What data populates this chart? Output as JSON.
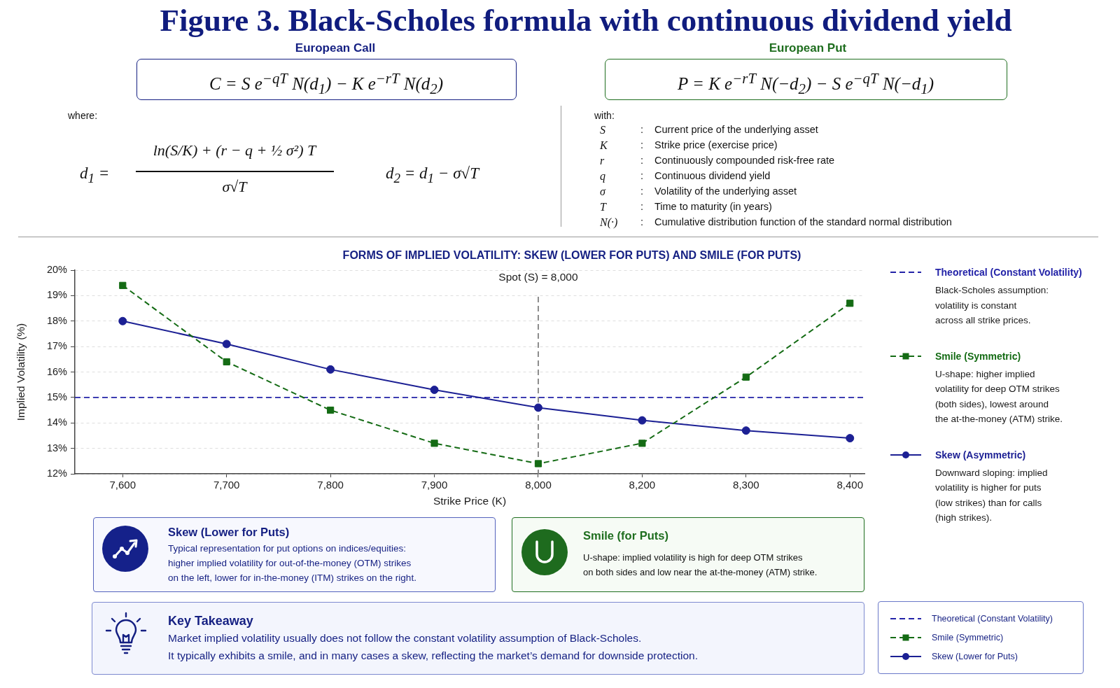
{
  "chart_data": {
    "type": "line",
    "title": "Figure 3. Black-Scholes formula with continuous dividend yield",
    "subtitle": "FORMS OF IMPLIED VOLATILITY: SKEW (LOWER FOR PUTS) AND SMILE (FOR PUTS)",
    "xlabel": "Strike Price (K)",
    "ylabel": "Implied Volatility (%)",
    "categories": [
      "7,600",
      "7,700",
      "7,800",
      "7,900",
      "8,000",
      "8,200",
      "8,300",
      "8,400"
    ],
    "series": [
      {
        "name": "Smile (Symmetric)",
        "color": "#146b14",
        "marker": "square",
        "line_style": "dashed",
        "values": [
          19.4,
          16.4,
          14.5,
          13.2,
          12.4,
          13.2,
          15.8,
          18.7
        ]
      },
      {
        "name": "Skew (Asymmetric)",
        "color": "#1c2094",
        "marker": "circle",
        "line_style": "solid",
        "values": [
          18.0,
          17.1,
          16.1,
          15.3,
          14.6,
          14.1,
          13.7,
          13.4
        ]
      }
    ],
    "ylim": [
      12,
      20
    ],
    "yticks": [
      {
        "value": 12,
        "label": "12%"
      },
      {
        "value": 13,
        "label": "13%"
      },
      {
        "value": 14,
        "label": "14%"
      },
      {
        "value": 15,
        "label": "15%"
      },
      {
        "value": 16,
        "label": "16%"
      },
      {
        "value": 17,
        "label": "17%"
      },
      {
        "value": 18,
        "label": "18%"
      },
      {
        "value": 19,
        "label": "19%"
      },
      {
        "value": 20,
        "label": "20%"
      }
    ],
    "grid": "y",
    "legend": "right",
    "ref_lines": [
      {
        "axis": "y",
        "value": 15,
        "label": "Theoretical (Constant Volatility)",
        "color": "#2323a8",
        "line_style": "dashed"
      },
      {
        "axis": "x",
        "value": "8,000",
        "label": "Spot (S) = 8,000",
        "color": "#808080",
        "line_style": "dashed"
      }
    ],
    "annotations": [
      "European Call",
      "C = S e$^{−qT}$ N(d$_{1}$) − K e$^{−rT}$ N(d$_{2}$)",
      "European Put",
      "P = K e$^{−rT}$ N(−d$_{2}$) − S e$^{−qT}$ N(−d$_{1}$)",
      "where:",
      "d$_{1}$ =",
      "ln(S/K) + (r − q + ½ σ²) T",
      "σ√T",
      "d$_{2}$ = d$_{1}$ − σ√T",
      "with:",
      "S : Current price of the underlying asset",
      "K : Strike price (exercise price)",
      "r : Continuously compounded risk-free rate",
      "q : Continuous dividend yield",
      "σ : Volatility of the underlying asset",
      "T : Time to maturity (in years)",
      "N(·) : Cumulative distribution function of the standard normal distribution",
      "Black-Scholes assumption:\nvolatility is constant\nacross all strike prices.",
      "U-shape: higher implied\nvolatility for deep OTM strikes\n(both sides), lowest around\nthe at-the-money (ATM) strike.",
      "Downward sloping: implied\nvolatility is higher for puts\n(low strikes) than for calls\n(high strikes).",
      "Skew (Lower for Puts)",
      "Typical representation for put options on indices/equities:\nhigher implied volatility for out-of-the-money (OTM) strikes\non the left, lower for in-the-money (ITM) strikes on the right.",
      "Smile (for Puts)",
      "U-shape: implied volatility is high for deep OTM strikes\non both sides and low near the at-the-money (ATM) strike.",
      "Key Takeaway",
      "Market implied volatility usually does not follow the constant volatility assumption of Black-Scholes.\nIt typically exhibits a smile, and in many cases a skew, reflecting the market’s demand for downside protection.",
      "Theoretical (Constant Volatility)",
      "Smile (Symmetric)",
      "Skew (Lower for Puts)"
    ]
  }
}
